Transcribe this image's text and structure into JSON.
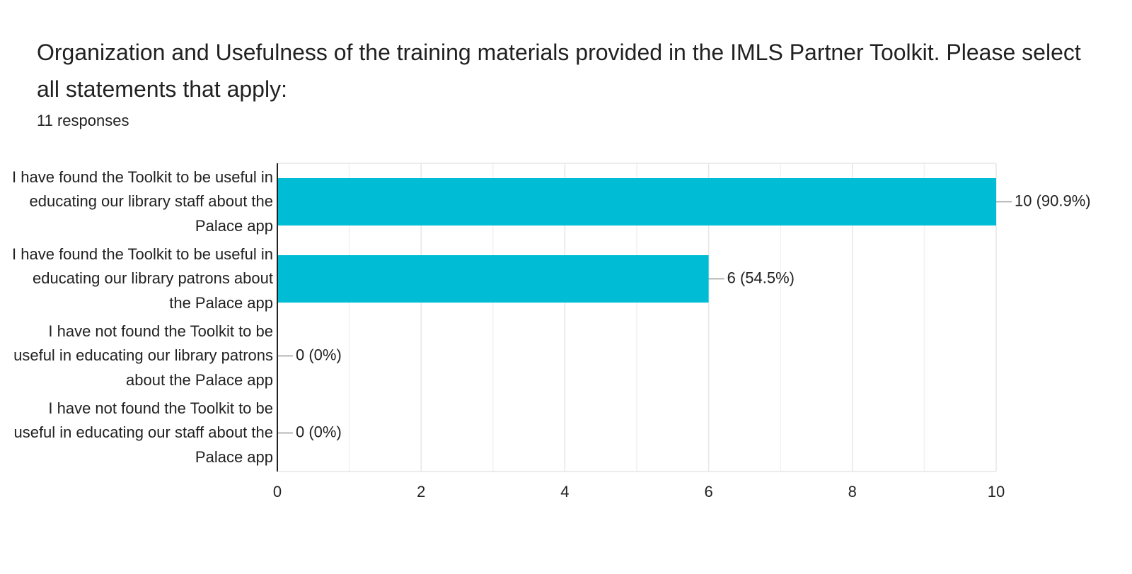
{
  "chart_data": {
    "type": "bar",
    "orientation": "horizontal",
    "title": "Organization and Usefulness of the training materials provided in the IMLS Partner Toolkit. Please select all statements that apply:",
    "subtitle": "11 responses",
    "categories": [
      "I have found the Toolkit to be useful in educating our library staff about the Palace app",
      "I have found the Toolkit to be useful in educating our library patrons about the Palace app",
      "I have not found the Toolkit to be useful in educating our library patrons about the Palace app",
      "I have not found the Toolkit to be useful in educating our staff about the Palace app"
    ],
    "values": [
      10,
      6,
      0,
      0
    ],
    "value_labels": [
      "10 (90.9%)",
      "6 (54.5%)",
      "0 (0%)",
      "0 (0%)"
    ],
    "color": "#00bcd4",
    "xlim": [
      0,
      10
    ],
    "xticks": [
      0,
      2,
      4,
      6,
      8,
      10
    ],
    "minor_gridlines": [
      1,
      3,
      5,
      7,
      9
    ],
    "grid": true
  }
}
